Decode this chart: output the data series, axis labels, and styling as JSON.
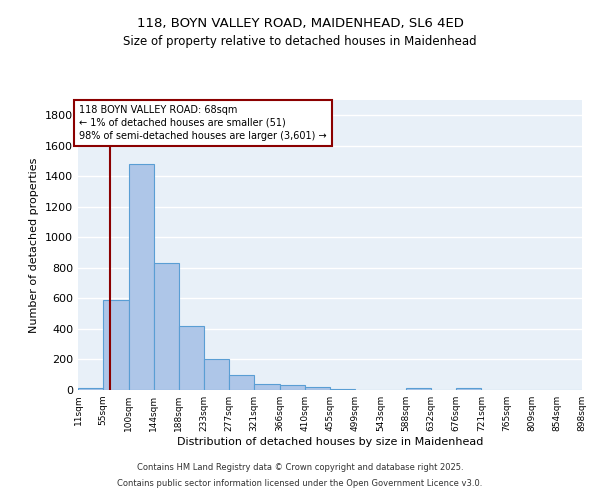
{
  "title_line1": "118, BOYN VALLEY ROAD, MAIDENHEAD, SL6 4ED",
  "title_line2": "Size of property relative to detached houses in Maidenhead",
  "xlabel": "Distribution of detached houses by size in Maidenhead",
  "ylabel": "Number of detached properties",
  "bar_edges": [
    11,
    55,
    100,
    144,
    188,
    233,
    277,
    321,
    366,
    410,
    455,
    499,
    543,
    588,
    632,
    676,
    721,
    765,
    809,
    854,
    898
  ],
  "bar_heights": [
    15,
    590,
    1480,
    830,
    420,
    200,
    100,
    38,
    30,
    22,
    8,
    0,
    0,
    13,
    0,
    13,
    0,
    0,
    0,
    0
  ],
  "bar_color": "#aec6e8",
  "bar_edge_color": "#5a9ed4",
  "bg_color": "#e8f0f8",
  "grid_color": "white",
  "vline_x": 68,
  "vline_color": "#8b0000",
  "annotation_text": "118 BOYN VALLEY ROAD: 68sqm\n← 1% of detached houses are smaller (51)\n98% of semi-detached houses are larger (3,601) →",
  "annotation_box_color": "white",
  "annotation_box_edge": "#8b0000",
  "ylim": [
    0,
    1900
  ],
  "yticks": [
    0,
    200,
    400,
    600,
    800,
    1000,
    1200,
    1400,
    1600,
    1800
  ],
  "xtick_labels": [
    "11sqm",
    "55sqm",
    "100sqm",
    "144sqm",
    "188sqm",
    "233sqm",
    "277sqm",
    "321sqm",
    "366sqm",
    "410sqm",
    "455sqm",
    "499sqm",
    "543sqm",
    "588sqm",
    "632sqm",
    "676sqm",
    "721sqm",
    "765sqm",
    "809sqm",
    "854sqm",
    "898sqm"
  ],
  "footnote1": "Contains HM Land Registry data © Crown copyright and database right 2025.",
  "footnote2": "Contains public sector information licensed under the Open Government Licence v3.0."
}
